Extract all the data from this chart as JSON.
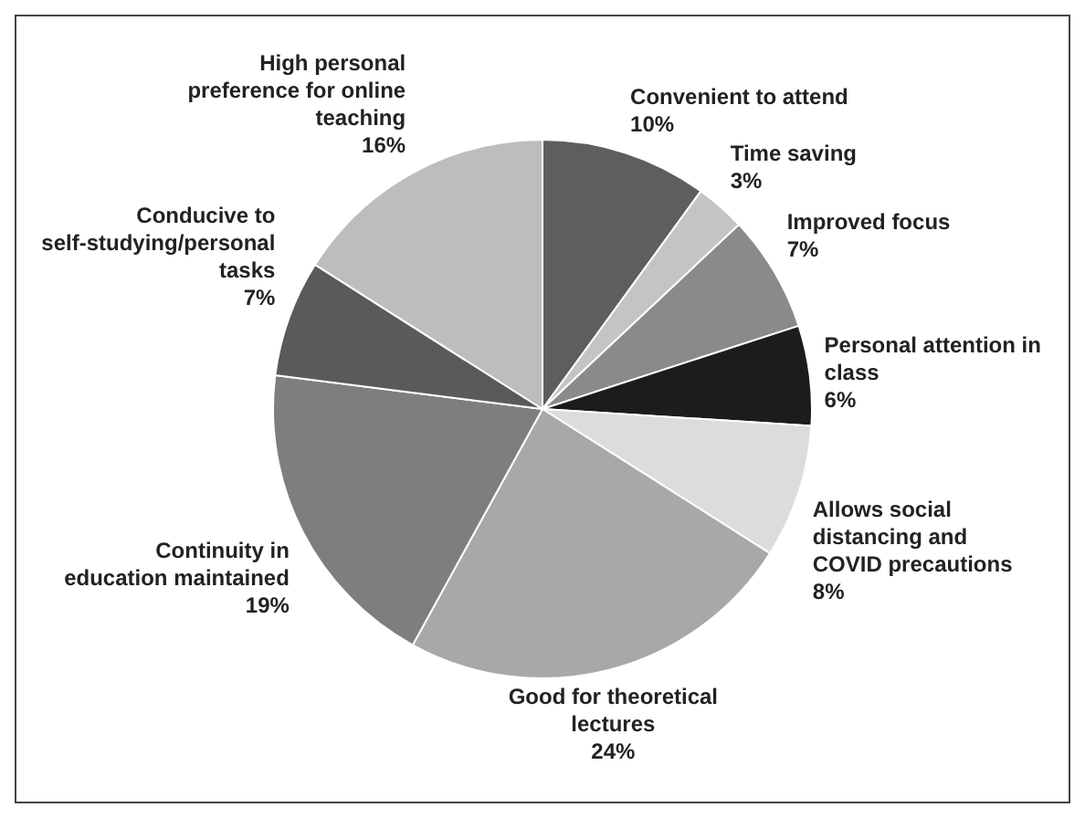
{
  "chart_data": {
    "type": "pie",
    "categories": [
      "Convenient to attend",
      "Time saving",
      "Improved focus",
      "Personal attention in class",
      "Allows social distancing and COVID precautions",
      "Good for theoretical lectures",
      "Continuity in education maintained",
      "Conducive to self-studying/personal tasks",
      "High personal preference for online teaching"
    ],
    "values": [
      10,
      3,
      7,
      6,
      8,
      24,
      19,
      7,
      16
    ],
    "colors": [
      "#5e5e5e",
      "#c4c4c4",
      "#8a8a8a",
      "#1c1c1c",
      "#dcdcdc",
      "#a8a8a8",
      "#7e7e7e",
      "#5a5a5a",
      "#bdbdbd"
    ],
    "value_labels": [
      "10%",
      "3%",
      "7%",
      "6%",
      "8%",
      "24%",
      "19%",
      "7%",
      "16%"
    ],
    "legend": false
  }
}
